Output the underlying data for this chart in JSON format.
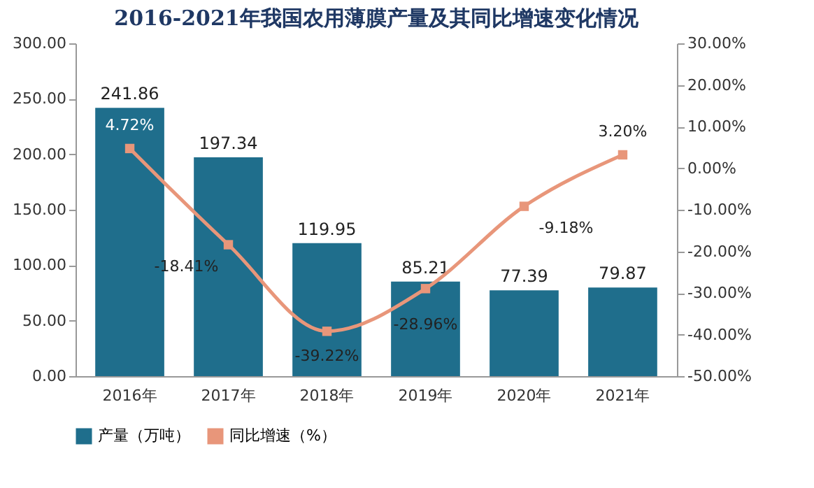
{
  "chart_data": {
    "type": "bar",
    "title": "2016-2021年我国农用薄膜产量及其同比增速变化情况",
    "categories": [
      "2016年",
      "2017年",
      "2018年",
      "2019年",
      "2020年",
      "2021年"
    ],
    "series": [
      {
        "name": "产量（万吨）",
        "color": "#1f6e8c",
        "values": [
          241.86,
          197.34,
          119.95,
          85.21,
          77.39,
          79.87
        ],
        "value_labels": [
          "241.86",
          "197.34",
          "119.95",
          "85.21",
          "77.39",
          "79.87"
        ]
      },
      {
        "name": "同比增速（%）",
        "type": "line",
        "axis": "y2",
        "color": "#e8967a",
        "values": [
          4.72,
          -18.41,
          -39.22,
          -28.96,
          -9.18,
          3.2
        ],
        "value_labels": [
          "4.72%",
          "-18.41%",
          "-39.22%",
          "-28.96%",
          "-9.18%",
          "3.20%"
        ]
      }
    ],
    "ylim": [
      0,
      300
    ],
    "yticks": [
      {
        "value": 0,
        "label": "0.00"
      },
      {
        "value": 50,
        "label": "50.00"
      },
      {
        "value": 100,
        "label": "100.00"
      },
      {
        "value": 150,
        "label": "150.00"
      },
      {
        "value": 200,
        "label": "200.00"
      },
      {
        "value": 250,
        "label": "250.00"
      },
      {
        "value": 300,
        "label": "300.00"
      }
    ],
    "y2lim": [
      -50,
      30
    ],
    "y2ticks": [
      {
        "value": -50,
        "label": "-50.00%"
      },
      {
        "value": -40,
        "label": "-40.00%"
      },
      {
        "value": -30,
        "label": "-30.00%"
      },
      {
        "value": -20,
        "label": "-20.00%"
      },
      {
        "value": -10,
        "label": "-10.00%"
      },
      {
        "value": 0,
        "label": "0.00%"
      },
      {
        "value": 10,
        "label": "10.00%"
      },
      {
        "value": 20,
        "label": "20.00%"
      },
      {
        "value": 30,
        "label": "30.00%"
      }
    ],
    "grid": false,
    "legend": "bottom",
    "marker": "square",
    "line_style": "solid"
  }
}
